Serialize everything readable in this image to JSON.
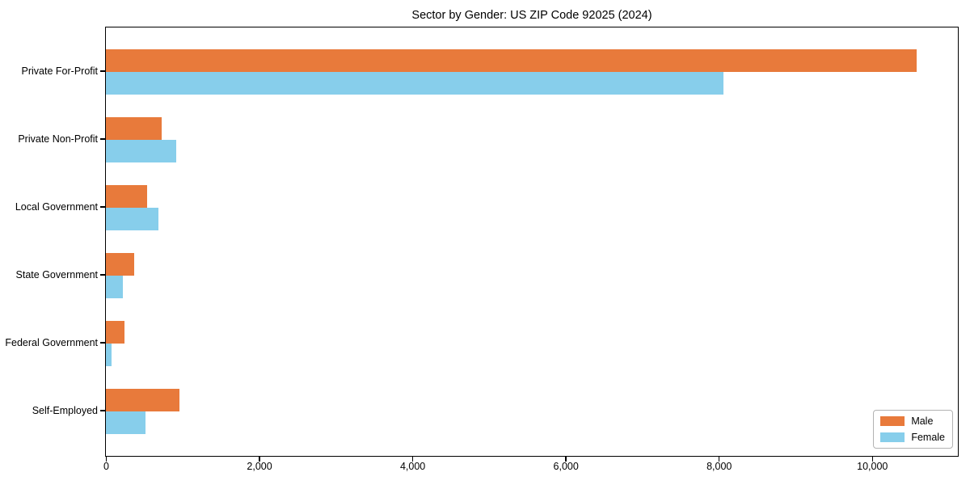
{
  "chart_data": {
    "type": "bar",
    "orientation": "horizontal",
    "title": "Sector by Gender: US ZIP Code 92025 (2024)",
    "categories": [
      "Private For-Profit",
      "Private Non-Profit",
      "Local Government",
      "State Government",
      "Federal Government",
      "Self-Employed"
    ],
    "series": [
      {
        "name": "Male",
        "color": "#e87a3b",
        "values": [
          10580,
          730,
          540,
          365,
          245,
          960
        ]
      },
      {
        "name": "Female",
        "color": "#87ceeb",
        "values": [
          8060,
          915,
          685,
          225,
          75,
          515
        ]
      }
    ],
    "xlabel": "",
    "ylabel": "",
    "xlim": [
      0,
      11110
    ],
    "xticks": [
      0,
      2000,
      4000,
      6000,
      8000,
      10000
    ],
    "xtick_labels": [
      "0",
      "2,000",
      "4,000",
      "6,000",
      "8,000",
      "10,000"
    ],
    "grid": false,
    "legend_position": "lower right",
    "background_color": "#ffffff",
    "frame_color": "#000000"
  }
}
